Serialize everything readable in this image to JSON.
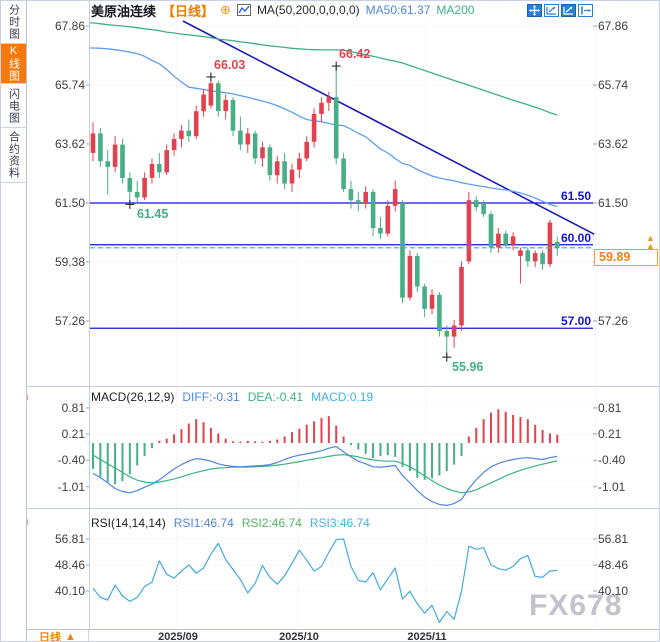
{
  "window_title": "美原油连续 日线 K线图",
  "sidebar": {
    "items": [
      {
        "label": "分时图",
        "active": false
      },
      {
        "label": "K线图",
        "active": true
      },
      {
        "label": "闪电图",
        "active": false
      },
      {
        "label": "合约资料",
        "active": false
      }
    ]
  },
  "header": {
    "symbol": "美原油连续",
    "period_tag": "【日线】",
    "plus_icon": "⊕",
    "indicator": "MA(50,200,0,0,0,0)",
    "ma50_label": "MA50:61.37",
    "ma200_label": "MA200"
  },
  "toolbar": {
    "icons": [
      "pan-icon",
      "axis-scale-icon",
      "axis-scale-filled-icon",
      "exit-chart-icon"
    ]
  },
  "main_chart": {
    "y_ticks": [
      "67.86",
      "65.74",
      "63.62",
      "61.50",
      "59.38",
      "57.26"
    ],
    "price_lines": [
      "61.50",
      "60.00",
      "57.00"
    ],
    "current_price_label": "59.89",
    "up_arrows": "▲"
  },
  "macd_panel": {
    "title": "MACD(26,12,9)",
    "diff_label": "DIFF:-0.31",
    "dea_label": "DEA:-0.41",
    "macd_label": "MACD:0.19",
    "y_ticks": [
      "0.81",
      "0.21",
      "-0.40",
      "-1.01"
    ]
  },
  "rsi_panel": {
    "title": "RSI(14,14,14)",
    "rsi1_label": "RSI1:46.74",
    "rsi2_label": "RSI2:46.74",
    "rsi3_label": "RSI3:46.74",
    "y_ticks": [
      "56.81",
      "48.46",
      "40.10"
    ]
  },
  "bottom_bar": {
    "period_label": "日线",
    "period_arrow": "▲",
    "x_labels": [
      "2025/09",
      "2025/10",
      "2025/11"
    ]
  },
  "watermark": "FX678",
  "colors": {
    "up": "#e0434f",
    "down": "#47ae85",
    "ma50": "#5f9ef0",
    "ma200": "#3db08c",
    "trendline": "#1a1ab8",
    "price_line": "#1414cc",
    "price_label": "#1313cf",
    "current_dash": "#3aa0ff",
    "accent_orange": "#f57f17",
    "diff": "#4f86e0",
    "dea": "#3cb383",
    "macd_text": "#3fb3e8",
    "rsi_line": "#45aadd",
    "axis_text": "#3f3f3f",
    "grid": "#e6e8f0",
    "border": "#c3cede",
    "sidebar_active_bg": "#f4790f",
    "watermark": "#c2c3cc",
    "marker_cross": "#2a2a2a"
  },
  "chart_data": [
    {
      "type": "candlestick",
      "title": "美原油连续 日线",
      "ylim": [
        55.5,
        68.25
      ],
      "y_ticks": [
        67.86,
        65.74,
        63.62,
        61.5,
        59.38,
        57.26
      ],
      "x_tick_labels": [
        "2025/09",
        "2025/10",
        "2025/11"
      ],
      "grid": true,
      "candles": [
        [
          63.3,
          64.4,
          63.0,
          64.0
        ],
        [
          64.0,
          64.2,
          62.8,
          63.0
        ],
        [
          63.0,
          63.4,
          61.8,
          62.8
        ],
        [
          62.8,
          63.9,
          62.6,
          63.6
        ],
        [
          63.6,
          63.8,
          62.2,
          62.4
        ],
        [
          62.4,
          62.6,
          61.45,
          61.9
        ],
        [
          61.9,
          62.3,
          61.5,
          61.7
        ],
        [
          61.7,
          62.6,
          61.6,
          62.4
        ],
        [
          62.4,
          63.1,
          62.2,
          62.9
        ],
        [
          62.9,
          63.3,
          62.4,
          62.6
        ],
        [
          62.6,
          63.6,
          62.5,
          63.4
        ],
        [
          63.4,
          64.0,
          63.2,
          63.8
        ],
        [
          63.8,
          64.3,
          63.5,
          64.1
        ],
        [
          64.1,
          64.5,
          63.7,
          63.9
        ],
        [
          63.9,
          65.0,
          63.8,
          64.8
        ],
        [
          64.8,
          65.6,
          64.6,
          65.4
        ],
        [
          65.0,
          66.03,
          64.9,
          65.8
        ],
        [
          65.8,
          65.9,
          64.6,
          64.8
        ],
        [
          64.8,
          65.4,
          64.5,
          65.2
        ],
        [
          65.2,
          65.3,
          63.9,
          64.1
        ],
        [
          64.1,
          64.6,
          63.4,
          63.6
        ],
        [
          63.6,
          64.2,
          63.3,
          64.0
        ],
        [
          64.0,
          64.1,
          62.9,
          63.1
        ],
        [
          63.1,
          63.7,
          62.8,
          63.5
        ],
        [
          63.5,
          63.6,
          62.3,
          62.5
        ],
        [
          62.5,
          63.2,
          62.2,
          63.0
        ],
        [
          63.0,
          63.3,
          62.0,
          62.2
        ],
        [
          62.2,
          62.9,
          61.9,
          62.7
        ],
        [
          62.7,
          63.3,
          62.4,
          63.1
        ],
        [
          63.1,
          63.9,
          63.0,
          63.7
        ],
        [
          63.7,
          64.9,
          63.5,
          64.7
        ],
        [
          64.7,
          65.3,
          64.4,
          65.1
        ],
        [
          65.1,
          65.5,
          64.8,
          65.3
        ],
        [
          65.3,
          66.42,
          62.9,
          63.1
        ],
        [
          63.1,
          63.3,
          61.9,
          62.0
        ],
        [
          62.0,
          62.3,
          61.3,
          61.6
        ],
        [
          61.6,
          61.9,
          61.2,
          61.5
        ],
        [
          61.5,
          62.1,
          61.3,
          61.9
        ],
        [
          61.9,
          62.0,
          60.3,
          60.6
        ],
        [
          60.6,
          61.0,
          60.2,
          60.4
        ],
        [
          60.4,
          61.6,
          60.3,
          61.4
        ],
        [
          61.4,
          62.3,
          61.2,
          62.0
        ],
        [
          61.5,
          61.6,
          57.9,
          58.1
        ],
        [
          58.1,
          59.8,
          58.0,
          59.6
        ],
        [
          59.6,
          59.7,
          58.3,
          58.5
        ],
        [
          58.5,
          58.6,
          57.4,
          57.7
        ],
        [
          57.7,
          58.4,
          57.5,
          58.2
        ],
        [
          58.2,
          58.3,
          56.7,
          56.9
        ],
        [
          56.9,
          57.1,
          55.96,
          56.7
        ],
        [
          56.7,
          57.3,
          56.3,
          57.1
        ],
        [
          57.1,
          59.4,
          56.9,
          59.2
        ],
        [
          59.4,
          61.9,
          59.3,
          61.6
        ],
        [
          61.6,
          61.75,
          61.2,
          61.35
        ],
        [
          61.5,
          61.6,
          61.0,
          61.1
        ],
        [
          61.1,
          61.2,
          59.7,
          59.9
        ],
        [
          59.9,
          60.6,
          59.7,
          60.4
        ],
        [
          60.4,
          60.5,
          59.9,
          60.0
        ],
        [
          60.0,
          60.45,
          59.8,
          60.3
        ],
        [
          59.6,
          59.9,
          58.6,
          59.8
        ],
        [
          59.8,
          59.9,
          59.2,
          59.4
        ],
        [
          59.4,
          59.8,
          59.2,
          59.7
        ],
        [
          59.7,
          59.8,
          59.1,
          59.3
        ],
        [
          59.3,
          60.9,
          59.2,
          60.8
        ],
        [
          60.1,
          60.3,
          59.6,
          59.89
        ]
      ],
      "ma50": [
        67.07,
        67.06,
        67.04,
        67.01,
        66.97,
        66.92,
        66.87,
        66.77,
        66.62,
        66.5,
        66.3,
        66.05,
        65.85,
        65.66,
        65.62,
        65.58,
        65.53,
        65.5,
        65.46,
        65.42,
        65.36,
        65.3,
        65.23,
        65.16,
        65.09,
        65.0,
        64.88,
        64.76,
        64.62,
        64.5,
        64.45,
        64.42,
        64.36,
        64.3,
        64.28,
        64.15,
        64.0,
        63.88,
        63.66,
        63.44,
        63.3,
        63.1,
        62.92,
        62.85,
        62.7,
        62.58,
        62.47,
        62.4,
        62.34,
        62.3,
        62.23,
        62.18,
        62.13,
        62.09,
        62.04,
        62.0,
        61.97,
        61.92,
        61.86,
        61.78,
        61.68,
        61.56,
        61.45,
        61.37
      ],
      "ma200": [
        67.97,
        67.94,
        67.91,
        67.88,
        67.86,
        67.83,
        67.8,
        67.76,
        67.73,
        67.69,
        67.64,
        67.61,
        67.57,
        67.54,
        67.51,
        67.48,
        67.44,
        67.39,
        67.36,
        67.33,
        67.29,
        67.26,
        67.22,
        67.18,
        67.15,
        67.12,
        67.09,
        67.06,
        67.04,
        67.02,
        67.01,
        67.0,
        67.0,
        67.0,
        66.99,
        66.94,
        66.88,
        66.83,
        66.77,
        66.71,
        66.65,
        66.59,
        66.53,
        66.44,
        66.35,
        66.26,
        66.17,
        66.08,
        65.99,
        65.9,
        65.82,
        65.73,
        65.64,
        65.55,
        65.46,
        65.37,
        65.28,
        65.19,
        65.11,
        65.03,
        64.94,
        64.85,
        64.75,
        64.66
      ],
      "trendline": {
        "points": [
          [
            12.2,
            68.04
          ],
          [
            68.0,
            60.38
          ]
        ]
      },
      "horizontal_lines": [
        61.5,
        60.0,
        57.0
      ],
      "current_price": 59.89,
      "marked_points": [
        {
          "index": 16,
          "price": 66.03,
          "label": "66.03",
          "kind": "high"
        },
        {
          "index": 33,
          "price": 66.42,
          "label": "66.42",
          "kind": "high"
        },
        {
          "index": 5,
          "price": 61.45,
          "label": "61.45",
          "kind": "low"
        },
        {
          "index": 48,
          "price": 55.96,
          "label": "55.96",
          "kind": "low"
        }
      ]
    },
    {
      "type": "bar",
      "title": "MACD(26,12,9)",
      "y_ticks": [
        0.81,
        0.21,
        -0.4,
        -1.01
      ],
      "hist": [
        -0.6,
        -0.78,
        -0.9,
        -0.95,
        -0.88,
        -0.72,
        -0.52,
        -0.3,
        -0.12,
        0.05,
        0.1,
        0.2,
        0.32,
        0.45,
        0.55,
        0.48,
        0.35,
        0.22,
        0.1,
        0.04,
        0.03,
        0.05,
        0.04,
        0.03,
        0.05,
        0.08,
        0.15,
        0.25,
        0.33,
        0.42,
        0.5,
        0.58,
        0.62,
        0.4,
        0.15,
        -0.05,
        -0.15,
        -0.25,
        -0.35,
        -0.3,
        -0.28,
        -0.32,
        -0.55,
        -0.65,
        -0.8,
        -0.85,
        -0.82,
        -0.75,
        -0.65,
        -0.5,
        -0.3,
        0.15,
        0.35,
        0.55,
        0.7,
        0.78,
        0.72,
        0.65,
        0.6,
        0.55,
        0.42,
        0.3,
        0.22,
        0.19
      ],
      "series": [
        {
          "name": "DIFF",
          "values": [
            -0.7,
            -0.8,
            -0.92,
            -1.05,
            -1.12,
            -1.15,
            -1.1,
            -1.02,
            -0.95,
            -0.85,
            -0.72,
            -0.6,
            -0.5,
            -0.42,
            -0.36,
            -0.38,
            -0.42,
            -0.48,
            -0.52,
            -0.54,
            -0.55,
            -0.54,
            -0.53,
            -0.52,
            -0.5,
            -0.45,
            -0.38,
            -0.32,
            -0.28,
            -0.25,
            -0.22,
            -0.18,
            -0.12,
            -0.08,
            -0.2,
            -0.32,
            -0.42,
            -0.48,
            -0.55,
            -0.56,
            -0.54,
            -0.52,
            -0.75,
            -0.92,
            -1.1,
            -1.25,
            -1.35,
            -1.42,
            -1.44,
            -1.4,
            -1.3,
            -1.05,
            -0.85,
            -0.68,
            -0.55,
            -0.47,
            -0.42,
            -0.38,
            -0.35,
            -0.34,
            -0.36,
            -0.38,
            -0.34,
            -0.31
          ]
        },
        {
          "name": "DEA",
          "values": [
            -0.28,
            -0.38,
            -0.48,
            -0.58,
            -0.68,
            -0.78,
            -0.86,
            -0.9,
            -0.92,
            -0.9,
            -0.87,
            -0.83,
            -0.78,
            -0.73,
            -0.68,
            -0.64,
            -0.6,
            -0.58,
            -0.57,
            -0.56,
            -0.56,
            -0.56,
            -0.55,
            -0.54,
            -0.53,
            -0.51,
            -0.49,
            -0.46,
            -0.43,
            -0.4,
            -0.37,
            -0.34,
            -0.31,
            -0.28,
            -0.27,
            -0.29,
            -0.32,
            -0.36,
            -0.39,
            -0.41,
            -0.42,
            -0.42,
            -0.47,
            -0.55,
            -0.65,
            -0.76,
            -0.87,
            -0.97,
            -1.05,
            -1.11,
            -1.15,
            -1.13,
            -1.08,
            -1.0,
            -0.92,
            -0.84,
            -0.76,
            -0.69,
            -0.63,
            -0.58,
            -0.53,
            -0.49,
            -0.45,
            -0.41
          ]
        }
      ]
    },
    {
      "type": "line",
      "title": "RSI(14,14,14)",
      "y_ticks": [
        56.81,
        48.46,
        40.1
      ],
      "series": [
        {
          "name": "RSI",
          "values": [
            41.0,
            38.0,
            37.2,
            42.0,
            38.5,
            36.8,
            38.0,
            41.5,
            43.0,
            49.8,
            45.5,
            44.2,
            46.5,
            48.5,
            45.8,
            47.5,
            52.0,
            55.4,
            50.2,
            47.0,
            43.8,
            39.5,
            42.5,
            48.3,
            44.5,
            42.3,
            45.0,
            49.0,
            53.2,
            50.0,
            46.5,
            48.0,
            52.5,
            56.6,
            56.8,
            48.0,
            43.5,
            43.0,
            46.0,
            40.5,
            44.0,
            47.5,
            37.5,
            40.0,
            36.0,
            33.0,
            35.5,
            30.0,
            33.5,
            31.0,
            40.0,
            54.5,
            53.5,
            54.0,
            48.5,
            47.3,
            46.8,
            48.0,
            50.5,
            51.5,
            44.8,
            44.5,
            46.5,
            46.74
          ]
        }
      ]
    }
  ]
}
